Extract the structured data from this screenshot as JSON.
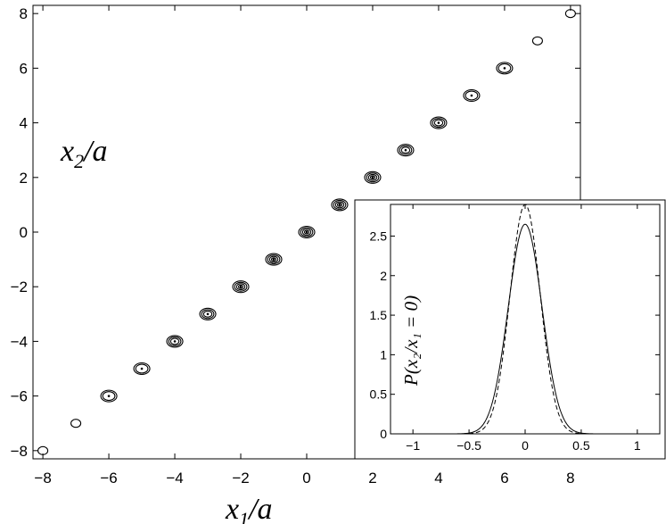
{
  "chart_data": [
    {
      "type": "contour",
      "xlabel": {
        "base": "x",
        "sub": "1",
        "rest": "/a"
      },
      "ylabel": {
        "base": "x",
        "sub": "2",
        "rest": "/a"
      },
      "xlim": [
        -8.3,
        8.3
      ],
      "ylim": [
        -8.3,
        8.3
      ],
      "xticks": [
        -8,
        -6,
        -4,
        -2,
        0,
        2,
        4,
        6,
        8
      ],
      "yticks": [
        -8,
        -6,
        -4,
        -2,
        0,
        2,
        4,
        6,
        8
      ],
      "xtick_labels": [
        "−8",
        "−6",
        "−4",
        "−2",
        "0",
        "2",
        "4",
        "6",
        "8"
      ],
      "ytick_labels": [
        "−8",
        "−6",
        "−4",
        "−2",
        "0",
        "2",
        "4",
        "6",
        "8"
      ],
      "peaks": [
        {
          "x": -8,
          "y": -8,
          "levels": 1
        },
        {
          "x": -7,
          "y": -7,
          "levels": 1
        },
        {
          "x": -6,
          "y": -6,
          "levels": 2
        },
        {
          "x": -5,
          "y": -5,
          "levels": 2
        },
        {
          "x": -4,
          "y": -4,
          "levels": 3
        },
        {
          "x": -3,
          "y": -3,
          "levels": 3
        },
        {
          "x": -2,
          "y": -2,
          "levels": 4
        },
        {
          "x": -1,
          "y": -1,
          "levels": 4
        },
        {
          "x": 0,
          "y": 0,
          "levels": 4
        },
        {
          "x": 1,
          "y": 1,
          "levels": 4
        },
        {
          "x": 2,
          "y": 2,
          "levels": 4
        },
        {
          "x": 3,
          "y": 3,
          "levels": 3
        },
        {
          "x": 4,
          "y": 4,
          "levels": 3
        },
        {
          "x": 5,
          "y": 5,
          "levels": 2
        },
        {
          "x": 6,
          "y": 6,
          "levels": 2
        },
        {
          "x": 7,
          "y": 7,
          "levels": 1
        },
        {
          "x": 8,
          "y": 8,
          "levels": 1
        }
      ]
    },
    {
      "type": "line",
      "ylabel": "P(x₂/x₁ = 0)",
      "xlim": [
        -1.2,
        1.2
      ],
      "ylim": [
        0,
        2.9
      ],
      "xticks": [
        -1,
        -0.5,
        0,
        0.5,
        1
      ],
      "yticks": [
        0,
        0.5,
        1,
        1.5,
        2,
        2.5
      ],
      "xtick_labels": [
        "−1",
        "−0.5",
        "0",
        "0.5",
        "1"
      ],
      "ytick_labels": [
        "0",
        "0.5",
        "1",
        "1.5",
        "2",
        "2.5"
      ],
      "series": [
        {
          "style": "solid",
          "peak": 2.65,
          "sigma": 0.15
        },
        {
          "style": "dashed",
          "peak": 2.9,
          "sigma": 0.135
        }
      ]
    }
  ]
}
